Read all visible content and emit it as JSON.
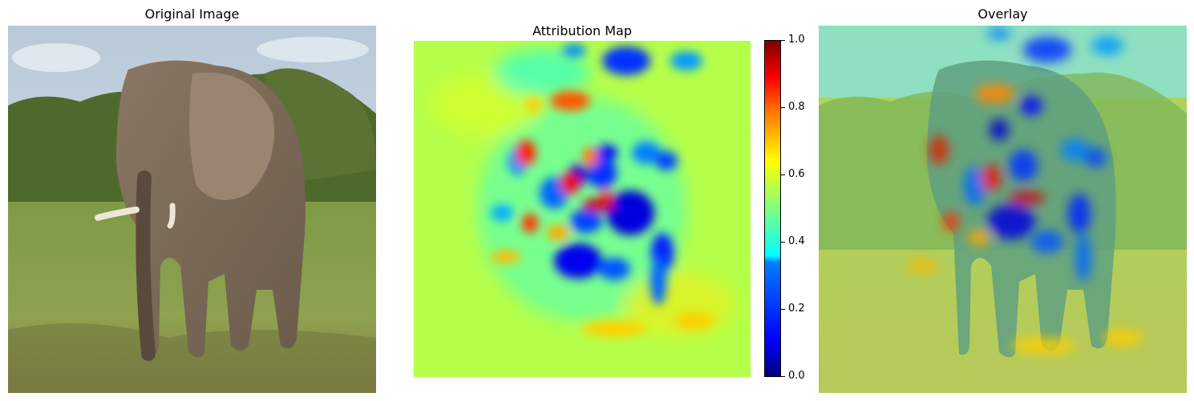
{
  "panels": {
    "original": {
      "title": "Original Image"
    },
    "attribution": {
      "title": "Attribution Map"
    },
    "overlay": {
      "title": "Overlay"
    }
  },
  "colorbar": {
    "ticks": [
      "0.0",
      "0.2",
      "0.4",
      "0.6",
      "0.8",
      "1.0"
    ],
    "colormap": [
      "#00007f",
      "#0000ff",
      "#007fff",
      "#00ffff",
      "#7fff7f",
      "#ffff00",
      "#ff7f00",
      "#ff0000",
      "#7f0000"
    ]
  }
}
